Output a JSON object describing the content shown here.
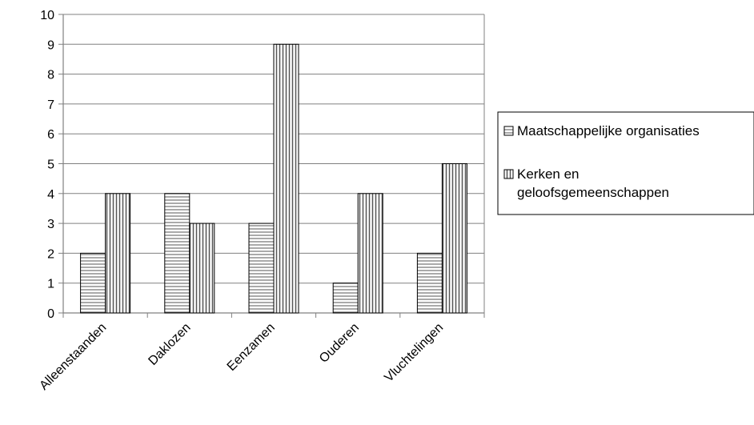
{
  "chart_data": {
    "type": "bar",
    "categories": [
      "Alleenstaanden",
      "Daklozen",
      "Eenzamen",
      "Ouderen",
      "Vluchtelingen"
    ],
    "series": [
      {
        "name": "Maatschappelijke organisaties",
        "values": [
          2,
          4,
          3,
          1,
          2
        ],
        "pattern": "horizontal-stripes"
      },
      {
        "name": "Kerken en geloofsgemeenschappen",
        "values": [
          4,
          3,
          9,
          4,
          5
        ],
        "pattern": "vertical-stripes"
      }
    ],
    "ylim": [
      0,
      10
    ],
    "yticks": [
      "0",
      "1",
      "2",
      "3",
      "4",
      "5",
      "6",
      "7",
      "8",
      "9",
      "10"
    ],
    "grid": true,
    "legend_position": "right",
    "legend_lines": [
      [
        "Maatschappelijke organisaties"
      ],
      [
        "Kerken en",
        "geloofsgemeenschappen"
      ]
    ],
    "colors": {
      "bar_stroke": "#000000",
      "stripe": "#555555",
      "grid": "#808080",
      "axis": "#808080"
    }
  }
}
